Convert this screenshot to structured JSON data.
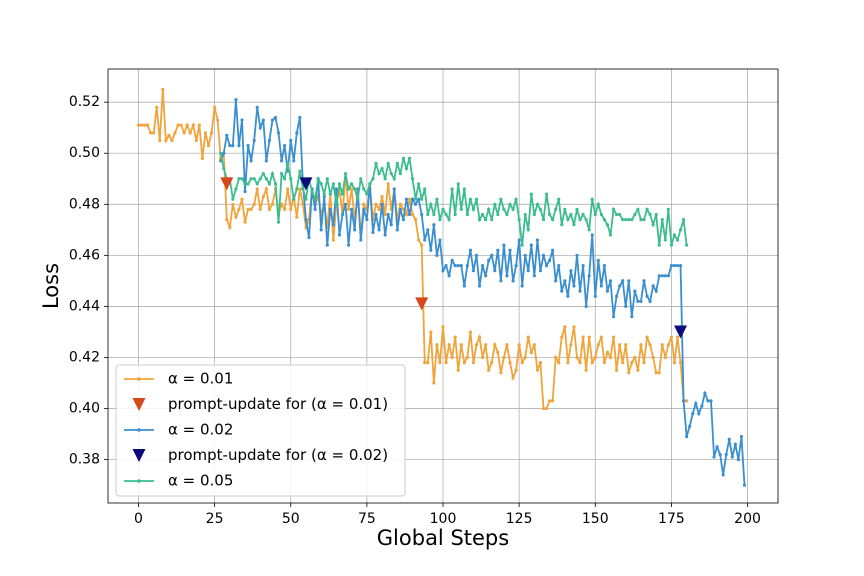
{
  "chart_data": {
    "type": "line",
    "xlabel": "Global Steps",
    "ylabel": "Loss",
    "xlim": [
      -10,
      210
    ],
    "ylim": [
      0.363,
      0.533
    ],
    "xticks": [
      0,
      25,
      50,
      75,
      100,
      125,
      150,
      175,
      200
    ],
    "yticks": [
      0.38,
      {
        "value": 0.4,
        "label": "0.40"
      },
      0.42,
      0.44,
      0.46,
      0.48,
      {
        "value": 0.5,
        "label": "0.50"
      },
      0.52
    ],
    "grid": true,
    "legend": "lower left",
    "series": [
      {
        "name": "α = 0.01",
        "color": "#f0a43a",
        "marker": "dot",
        "x": [
          0,
          1,
          2,
          3,
          4,
          5,
          6,
          7,
          8,
          9,
          10,
          11,
          12,
          13,
          14,
          15,
          16,
          17,
          18,
          19,
          20,
          21,
          22,
          23,
          24,
          25,
          26,
          27,
          28,
          29,
          30,
          31,
          32,
          33,
          34,
          35,
          36,
          37,
          38,
          39,
          40,
          41,
          42,
          43,
          44,
          45,
          46,
          47,
          48,
          49,
          50,
          51,
          52,
          53,
          54,
          55,
          56,
          57,
          58,
          59,
          60,
          61,
          62,
          63,
          64,
          65,
          66,
          67,
          68,
          69,
          70,
          71,
          72,
          73,
          74,
          75,
          76,
          77,
          78,
          79,
          80,
          81,
          82,
          83,
          84,
          85,
          86,
          87,
          88,
          89,
          90,
          91,
          92,
          93,
          94,
          95,
          96,
          97,
          98,
          99,
          100,
          101,
          102,
          103,
          104,
          105,
          106,
          107,
          108,
          109,
          110,
          111,
          112,
          113,
          114,
          115,
          116,
          117,
          118,
          119,
          120,
          121,
          122,
          123,
          124,
          125,
          126,
          127,
          128,
          129,
          130,
          131,
          132,
          133,
          134,
          135,
          136,
          137,
          138,
          139,
          140,
          141,
          142,
          143,
          144,
          145,
          146,
          147,
          148,
          149,
          150,
          151,
          152,
          153,
          154,
          155,
          156,
          157,
          158,
          159,
          160,
          161,
          162,
          163,
          164,
          165,
          166,
          167,
          168,
          169,
          170,
          171,
          172,
          173,
          174,
          175,
          176,
          177,
          178,
          179,
          180
        ],
        "values": [
          0.511,
          0.511,
          0.511,
          0.511,
          0.508,
          0.508,
          0.518,
          0.505,
          0.525,
          0.505,
          0.507,
          0.505,
          0.508,
          0.511,
          0.511,
          0.508,
          0.511,
          0.508,
          0.511,
          0.505,
          0.511,
          0.498,
          0.508,
          0.503,
          0.508,
          0.518,
          0.513,
          0.498,
          0.5,
          0.474,
          0.471,
          0.48,
          0.475,
          0.478,
          0.482,
          0.473,
          0.478,
          0.478,
          0.48,
          0.486,
          0.478,
          0.483,
          0.486,
          0.478,
          0.48,
          0.486,
          0.476,
          0.48,
          0.478,
          0.486,
          0.478,
          0.483,
          0.475,
          0.486,
          0.48,
          0.471,
          0.474,
          0.486,
          0.48,
          0.483,
          0.476,
          0.48,
          0.471,
          0.484,
          0.466,
          0.48,
          0.486,
          0.476,
          0.492,
          0.478,
          0.486,
          0.474,
          0.483,
          0.469,
          0.48,
          0.478,
          0.486,
          0.474,
          0.48,
          0.478,
          0.483,
          0.476,
          0.488,
          0.478,
          0.486,
          0.474,
          0.48,
          0.478,
          0.476,
          0.482,
          0.476,
          0.474,
          0.466,
          0.464,
          0.418,
          0.418,
          0.43,
          0.41,
          0.425,
          0.418,
          0.432,
          0.418,
          0.425,
          0.42,
          0.428,
          0.415,
          0.425,
          0.418,
          0.42,
          0.43,
          0.418,
          0.425,
          0.428,
          0.42,
          0.425,
          0.415,
          0.418,
          0.425,
          0.422,
          0.414,
          0.42,
          0.425,
          0.418,
          0.412,
          0.415,
          0.425,
          0.418,
          0.42,
          0.428,
          0.422,
          0.425,
          0.415,
          0.418,
          0.4,
          0.4,
          0.403,
          0.403,
          0.42,
          0.418,
          0.428,
          0.432,
          0.418,
          0.425,
          0.432,
          0.42,
          0.418,
          0.428,
          0.415,
          0.428,
          0.418,
          0.42,
          0.425,
          0.428,
          0.418,
          0.422,
          0.42,
          0.428,
          0.415,
          0.425,
          0.418,
          0.425,
          0.414,
          0.418,
          0.42,
          0.415,
          0.425,
          0.418,
          0.428,
          0.425,
          0.42,
          0.414,
          0.414,
          0.425,
          0.42,
          0.425,
          0.428,
          0.418,
          0.428,
          0.418,
          0.403,
          0.403
        ]
      },
      {
        "name": "prompt-update for (α = 0.01)",
        "color": "#d4481a",
        "marker": "triangle",
        "x": [
          29,
          93
        ],
        "values": [
          0.488,
          0.441
        ]
      },
      {
        "name": "α = 0.02",
        "color": "#3a8fd0",
        "marker": "dot",
        "x": [
          27,
          28,
          29,
          30,
          31,
          32,
          33,
          34,
          35,
          36,
          37,
          38,
          39,
          40,
          41,
          42,
          43,
          44,
          45,
          46,
          47,
          48,
          49,
          50,
          51,
          52,
          53,
          54,
          55,
          56,
          57,
          58,
          59,
          60,
          61,
          62,
          63,
          64,
          65,
          66,
          67,
          68,
          69,
          70,
          71,
          72,
          73,
          74,
          75,
          76,
          77,
          78,
          79,
          80,
          81,
          82,
          83,
          84,
          85,
          86,
          87,
          88,
          89,
          90,
          91,
          92,
          93,
          94,
          95,
          96,
          97,
          98,
          99,
          100,
          101,
          102,
          103,
          104,
          105,
          106,
          107,
          108,
          109,
          110,
          111,
          112,
          113,
          114,
          115,
          116,
          117,
          118,
          119,
          120,
          121,
          122,
          123,
          124,
          125,
          126,
          127,
          128,
          129,
          130,
          131,
          132,
          133,
          134,
          135,
          136,
          137,
          138,
          139,
          140,
          141,
          142,
          143,
          144,
          145,
          146,
          147,
          148,
          149,
          150,
          151,
          152,
          153,
          154,
          155,
          156,
          157,
          158,
          159,
          160,
          161,
          162,
          163,
          164,
          165,
          166,
          167,
          168,
          169,
          170,
          171,
          172,
          173,
          174,
          175,
          176,
          177,
          178,
          179,
          180,
          181,
          182,
          183,
          184,
          185,
          186,
          187,
          188,
          189,
          190,
          191,
          192,
          193,
          194,
          195,
          196,
          197,
          198,
          199
        ],
        "values": [
          0.497,
          0.5,
          0.507,
          0.503,
          0.503,
          0.521,
          0.503,
          0.513,
          0.485,
          0.503,
          0.497,
          0.505,
          0.518,
          0.51,
          0.513,
          0.497,
          0.505,
          0.513,
          0.514,
          0.508,
          0.497,
          0.503,
          0.493,
          0.505,
          0.497,
          0.508,
          0.514,
          0.488,
          0.474,
          0.467,
          0.486,
          0.478,
          0.49,
          0.47,
          0.483,
          0.464,
          0.478,
          0.472,
          0.486,
          0.468,
          0.476,
          0.48,
          0.464,
          0.478,
          0.47,
          0.486,
          0.466,
          0.478,
          0.474,
          0.488,
          0.469,
          0.476,
          0.47,
          0.48,
          0.468,
          0.476,
          0.472,
          0.486,
          0.47,
          0.478,
          0.474,
          0.482,
          0.476,
          0.482,
          0.48,
          0.482,
          0.476,
          0.466,
          0.47,
          0.462,
          0.472,
          0.46,
          0.466,
          0.454,
          0.456,
          0.452,
          0.458,
          0.456,
          0.456,
          0.456,
          0.448,
          0.456,
          0.462,
          0.454,
          0.46,
          0.448,
          0.456,
          0.452,
          0.458,
          0.46,
          0.454,
          0.462,
          0.45,
          0.464,
          0.452,
          0.462,
          0.45,
          0.456,
          0.466,
          0.448,
          0.46,
          0.454,
          0.464,
          0.452,
          0.466,
          0.454,
          0.46,
          0.456,
          0.458,
          0.462,
          0.45,
          0.456,
          0.446,
          0.45,
          0.444,
          0.454,
          0.448,
          0.46,
          0.446,
          0.456,
          0.44,
          0.452,
          0.468,
          0.444,
          0.458,
          0.448,
          0.456,
          0.446,
          0.45,
          0.436,
          0.444,
          0.448,
          0.45,
          0.44,
          0.45,
          0.436,
          0.446,
          0.442,
          0.442,
          0.45,
          0.444,
          0.442,
          0.448,
          0.446,
          0.452,
          0.452,
          0.452,
          0.452,
          0.456,
          0.456,
          0.456,
          0.456,
          0.403,
          0.389,
          0.393,
          0.398,
          0.402,
          0.398,
          0.401,
          0.406,
          0.403,
          0.403,
          0.381,
          0.385,
          0.382,
          0.374,
          0.382,
          0.388,
          0.381,
          0.386,
          0.38,
          0.389,
          0.37
        ]
      },
      {
        "name": "prompt-update for (α = 0.02)",
        "color": "#0b0b7a",
        "marker": "triangle",
        "x": [
          55,
          178
        ],
        "values": [
          0.488,
          0.43
        ]
      },
      {
        "name": "α = 0.05",
        "color": "#3dbd8f",
        "marker": "dot",
        "x": [
          27,
          28,
          29,
          30,
          31,
          32,
          33,
          34,
          35,
          36,
          37,
          38,
          39,
          40,
          41,
          42,
          43,
          44,
          45,
          46,
          47,
          48,
          49,
          50,
          51,
          52,
          53,
          54,
          55,
          56,
          57,
          58,
          59,
          60,
          61,
          62,
          63,
          64,
          65,
          66,
          67,
          68,
          69,
          70,
          71,
          72,
          73,
          74,
          75,
          76,
          77,
          78,
          79,
          80,
          81,
          82,
          83,
          84,
          85,
          86,
          87,
          88,
          89,
          90,
          91,
          92,
          93,
          94,
          95,
          96,
          97,
          98,
          99,
          100,
          101,
          102,
          103,
          104,
          105,
          106,
          107,
          108,
          109,
          110,
          111,
          112,
          113,
          114,
          115,
          116,
          117,
          118,
          119,
          120,
          121,
          122,
          123,
          124,
          125,
          126,
          127,
          128,
          129,
          130,
          131,
          132,
          133,
          134,
          135,
          136,
          137,
          138,
          139,
          140,
          141,
          142,
          143,
          144,
          145,
          146,
          147,
          148,
          149,
          150,
          151,
          152,
          153,
          154,
          155,
          156,
          157,
          158,
          159,
          160,
          161,
          162,
          163,
          164,
          165,
          166,
          167,
          168,
          169,
          170,
          171,
          172,
          173,
          174,
          175,
          176,
          177,
          178,
          179,
          180
        ],
        "values": [
          0.5,
          0.494,
          0.49,
          0.49,
          0.482,
          0.486,
          0.49,
          0.49,
          0.488,
          0.488,
          0.49,
          0.49,
          0.488,
          0.49,
          0.492,
          0.49,
          0.488,
          0.492,
          0.488,
          0.473,
          0.492,
          0.49,
          0.496,
          0.49,
          0.482,
          0.486,
          0.493,
          0.486,
          0.482,
          0.49,
          0.485,
          0.482,
          0.49,
          0.488,
          0.484,
          0.49,
          0.484,
          0.488,
          0.48,
          0.488,
          0.484,
          0.492,
          0.486,
          0.488,
          0.486,
          0.482,
          0.49,
          0.486,
          0.484,
          0.488,
          0.49,
          0.496,
          0.492,
          0.494,
          0.49,
          0.496,
          0.492,
          0.49,
          0.496,
          0.492,
          0.498,
          0.494,
          0.498,
          0.49,
          0.482,
          0.488,
          0.482,
          0.486,
          0.476,
          0.48,
          0.476,
          0.482,
          0.474,
          0.478,
          0.476,
          0.474,
          0.486,
          0.476,
          0.488,
          0.478,
          0.486,
          0.476,
          0.482,
          0.478,
          0.482,
          0.474,
          0.476,
          0.474,
          0.478,
          0.474,
          0.48,
          0.476,
          0.482,
          0.478,
          0.476,
          0.48,
          0.478,
          0.482,
          0.474,
          0.464,
          0.476,
          0.47,
          0.484,
          0.476,
          0.48,
          0.478,
          0.474,
          0.484,
          0.476,
          0.474,
          0.478,
          0.482,
          0.472,
          0.478,
          0.474,
          0.476,
          0.472,
          0.478,
          0.474,
          0.476,
          0.474,
          0.47,
          0.482,
          0.476,
          0.48,
          0.476,
          0.474,
          0.472,
          0.468,
          0.478,
          0.476,
          0.476,
          0.474,
          0.474,
          0.474,
          0.474,
          0.476,
          0.478,
          0.474,
          0.474,
          0.478,
          0.476,
          0.472,
          0.476,
          0.464,
          0.474,
          0.466,
          0.478,
          0.464,
          0.468,
          0.466,
          0.47,
          0.474,
          0.464
        ]
      }
    ]
  }
}
